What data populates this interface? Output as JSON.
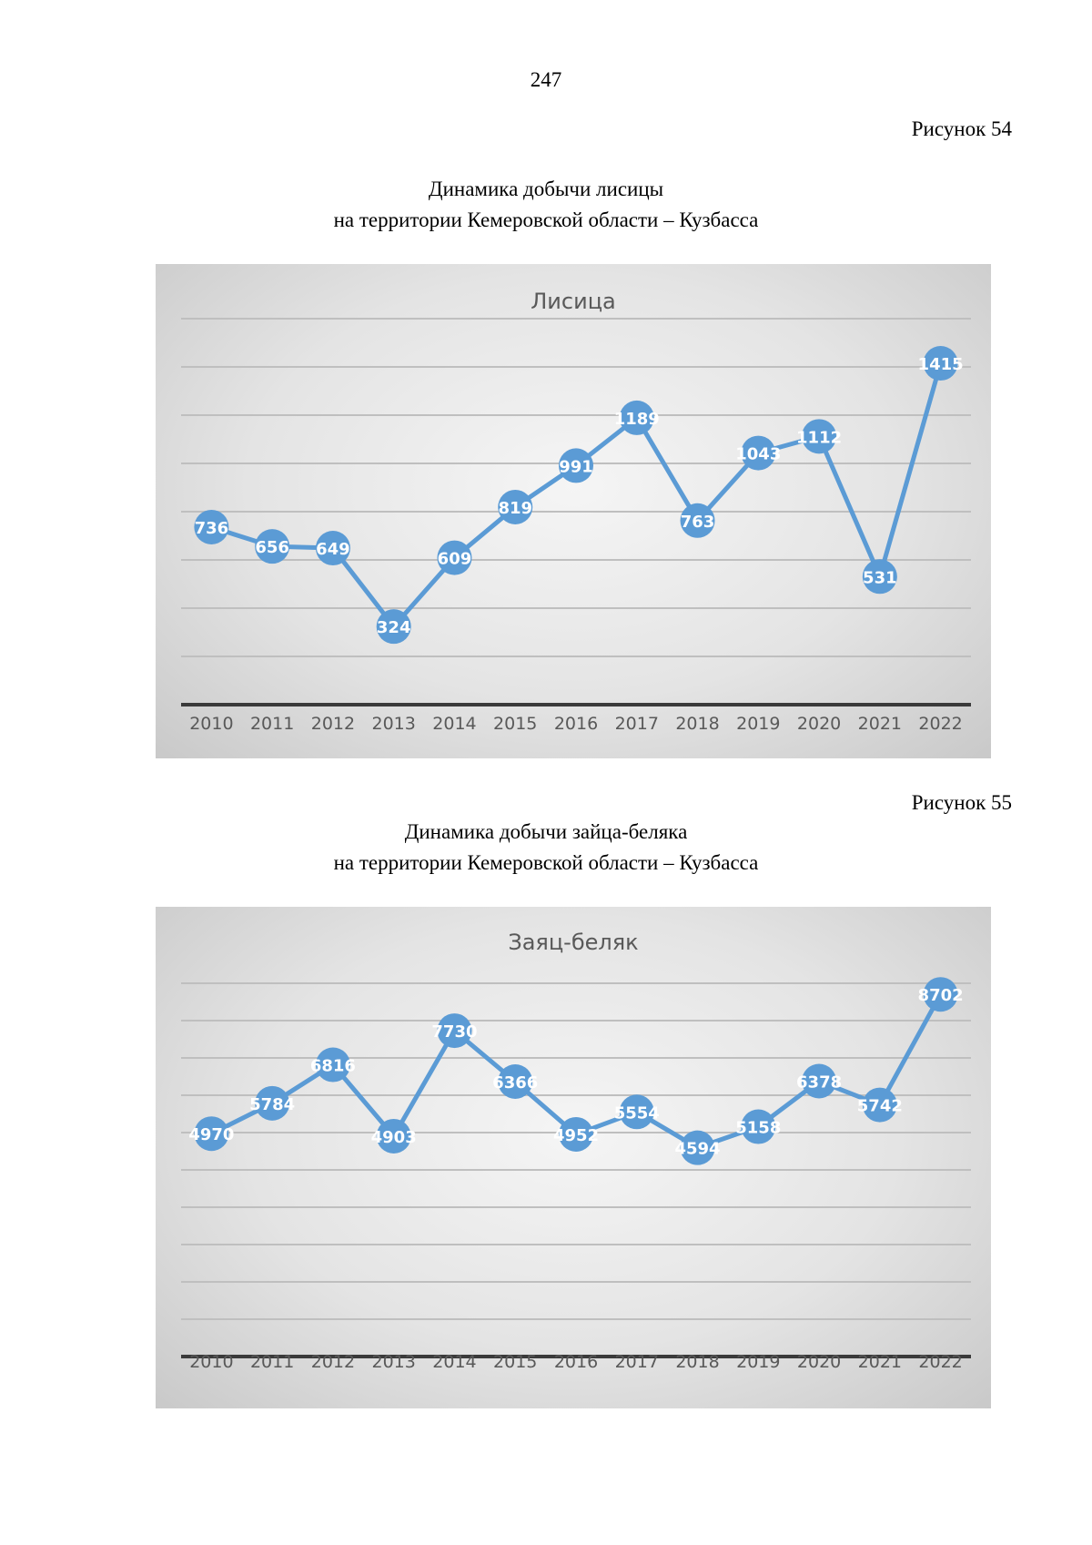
{
  "page": {
    "number": "247"
  },
  "figures": [
    {
      "label": "Рисунок 54",
      "caption_line1": "Динамика добычи лисицы",
      "caption_line2": "на территории Кемеровской области – Кузбасса"
    },
    {
      "label": "Рисунок 55",
      "caption_line1": "Динамика добычи зайца-беляка",
      "caption_line2": "на территории Кемеровской области – Кузбасса"
    }
  ],
  "colors": {
    "line": "#5b9bd5",
    "marker": "#5b9bd5",
    "grid": "#bfbfbf",
    "axis": "#3a3a3a",
    "label_text": "#ffffff"
  },
  "chart_data": [
    {
      "type": "line",
      "title": "Лисица",
      "categories": [
        "2010",
        "2011",
        "2012",
        "2013",
        "2014",
        "2015",
        "2016",
        "2017",
        "2018",
        "2019",
        "2020",
        "2021",
        "2022"
      ],
      "series": [
        {
          "values": [
            736,
            656,
            649,
            324,
            609,
            819,
            991,
            1189,
            763,
            1043,
            1112,
            531,
            1415
          ]
        }
      ],
      "ylim": [
        0,
        1600
      ],
      "grid": true,
      "y_tick_labels_visible": false,
      "data_labels": true,
      "markers": "circle"
    },
    {
      "type": "line",
      "title": "Заяц-беляк",
      "categories": [
        "2010",
        "2011",
        "2012",
        "2013",
        "2014",
        "2015",
        "2016",
        "2017",
        "2018",
        "2019",
        "2020",
        "2021",
        "2022"
      ],
      "series": [
        {
          "values": [
            4970,
            5784,
            6816,
            4903,
            7730,
            6366,
            4952,
            5554,
            4594,
            5158,
            6378,
            5742,
            8702
          ]
        }
      ],
      "ylim": [
        -1000,
        9000
      ],
      "grid": true,
      "y_tick_labels_visible": false,
      "data_labels": true,
      "markers": "circle"
    }
  ]
}
